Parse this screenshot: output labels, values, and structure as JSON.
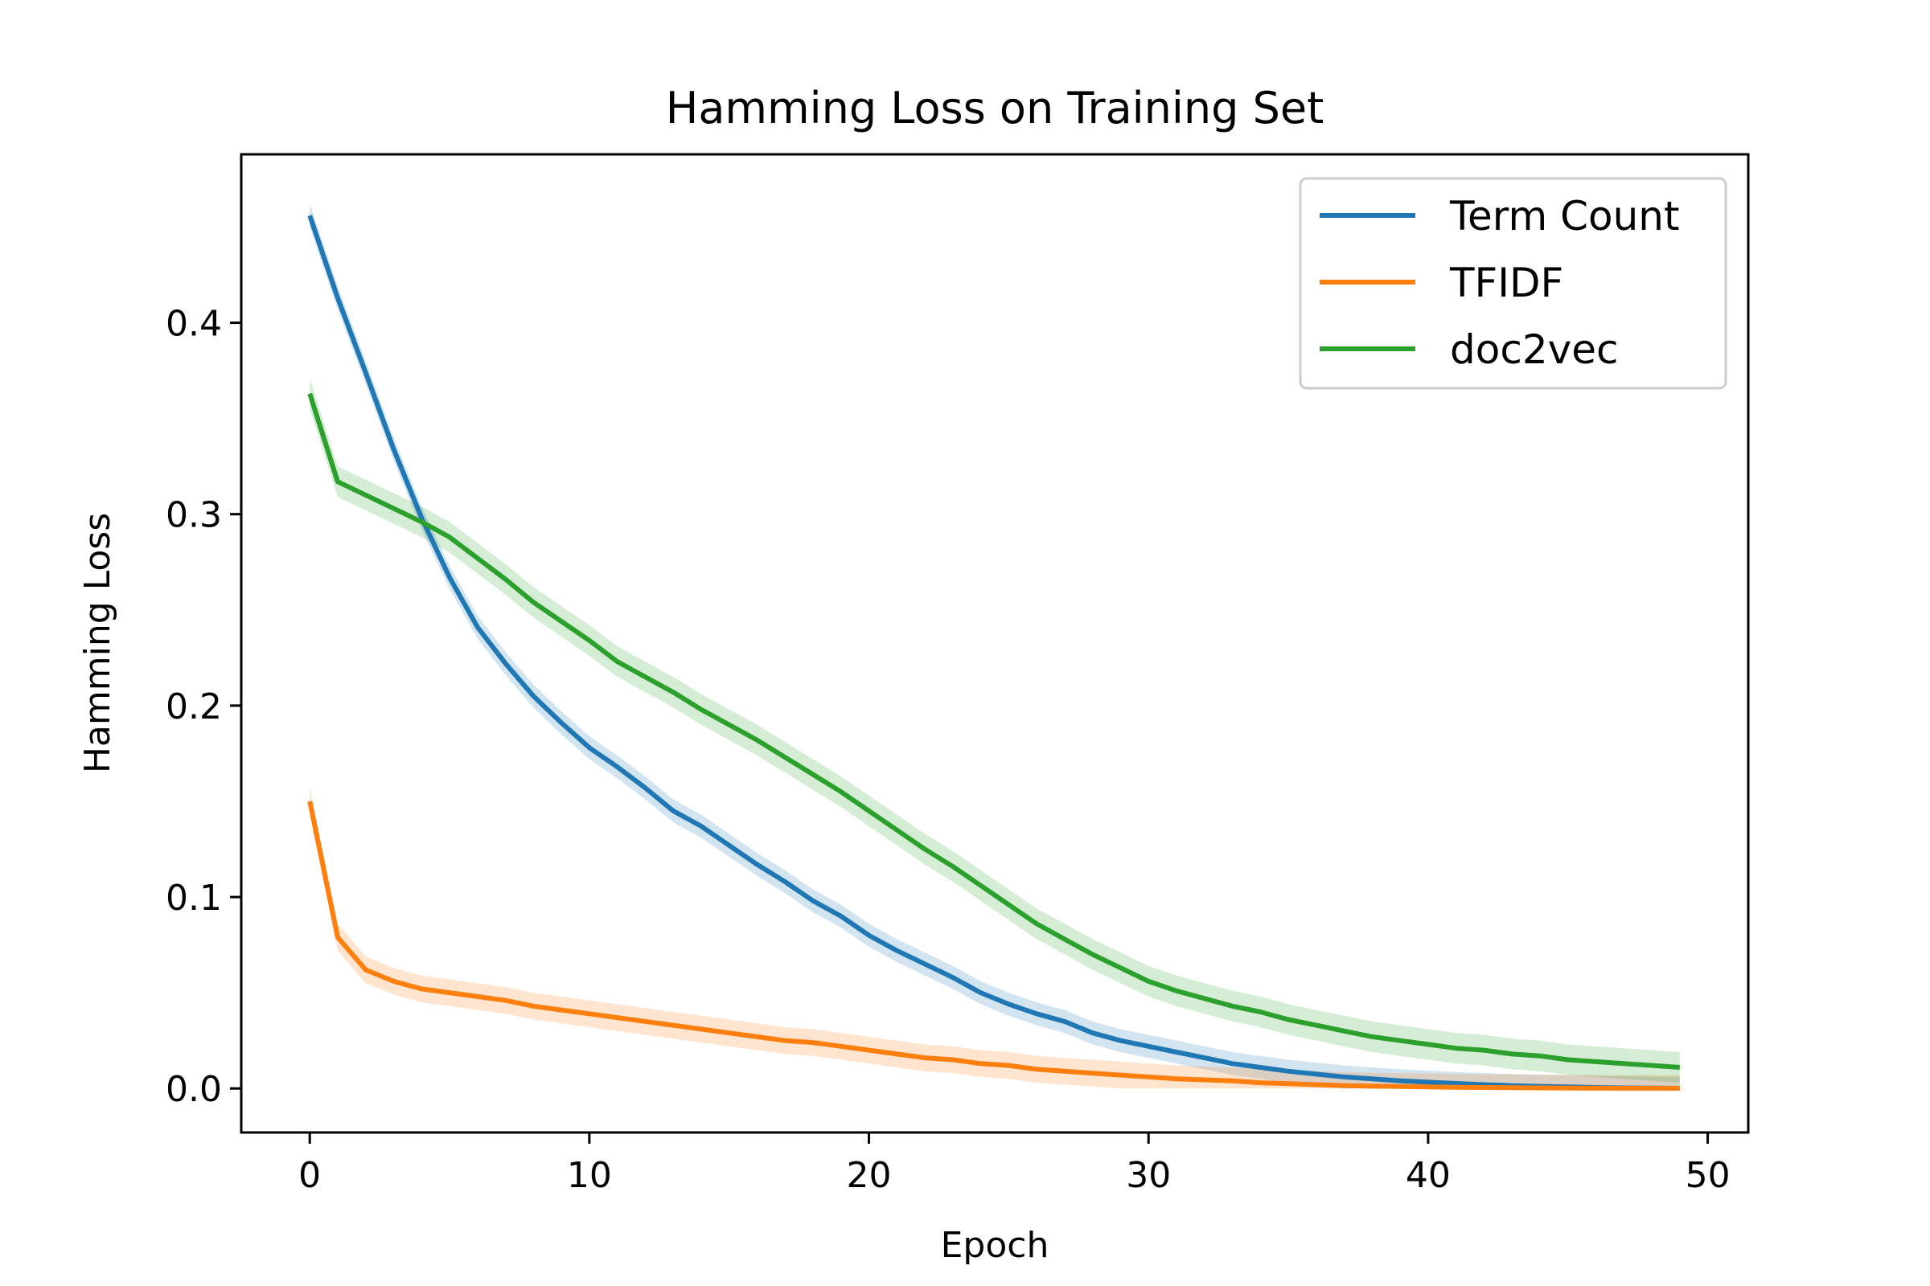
{
  "chart_data": {
    "type": "line",
    "title": "Hamming Loss on Training Set",
    "xlabel": "Epoch",
    "ylabel": "Hamming Loss",
    "xlim": [
      -2.45,
      51.45
    ],
    "ylim": [
      -0.023,
      0.488
    ],
    "xticks": [
      0,
      10,
      20,
      30,
      40,
      50
    ],
    "xtick_labels": [
      "0",
      "10",
      "20",
      "30",
      "40",
      "50"
    ],
    "yticks": [
      0.0,
      0.1,
      0.2,
      0.3,
      0.4
    ],
    "ytick_labels": [
      "0.0",
      "0.1",
      "0.2",
      "0.3",
      "0.4"
    ],
    "grid": false,
    "legend_position": "top-right",
    "x": [
      0,
      1,
      2,
      3,
      4,
      5,
      6,
      7,
      8,
      9,
      10,
      11,
      12,
      13,
      14,
      15,
      16,
      17,
      18,
      19,
      20,
      21,
      22,
      23,
      24,
      25,
      26,
      27,
      28,
      29,
      30,
      31,
      32,
      33,
      34,
      35,
      36,
      37,
      38,
      39,
      40,
      41,
      42,
      43,
      44,
      45,
      46,
      47,
      48,
      49
    ],
    "series": [
      {
        "name": "Term Count",
        "color": "#1f77b4",
        "band": 0.006,
        "values": [
          0.456,
          0.413,
          0.374,
          0.334,
          0.298,
          0.267,
          0.241,
          0.222,
          0.205,
          0.191,
          0.178,
          0.168,
          0.157,
          0.145,
          0.137,
          0.127,
          0.117,
          0.108,
          0.098,
          0.09,
          0.08,
          0.072,
          0.065,
          0.058,
          0.05,
          0.044,
          0.039,
          0.035,
          0.029,
          0.025,
          0.022,
          0.019,
          0.016,
          0.013,
          0.011,
          0.009,
          0.0075,
          0.006,
          0.005,
          0.004,
          0.0033,
          0.0026,
          0.002,
          0.0015,
          0.0011,
          0.0008,
          0.0005,
          0.0003,
          0.0002,
          0.0001
        ]
      },
      {
        "name": "TFIDF",
        "color": "#ff7f0e",
        "band": 0.007,
        "values": [
          0.15,
          0.079,
          0.062,
          0.056,
          0.052,
          0.05,
          0.048,
          0.046,
          0.043,
          0.041,
          0.039,
          0.037,
          0.035,
          0.033,
          0.031,
          0.029,
          0.027,
          0.025,
          0.024,
          0.022,
          0.02,
          0.018,
          0.016,
          0.015,
          0.013,
          0.012,
          0.01,
          0.009,
          0.008,
          0.007,
          0.006,
          0.005,
          0.0045,
          0.004,
          0.003,
          0.0025,
          0.002,
          0.0015,
          0.0012,
          0.001,
          0.0008,
          0.0006,
          0.0005,
          0.0004,
          0.0003,
          0.0002,
          0.00015,
          0.0001,
          0.0001,
          0.0001
        ]
      },
      {
        "name": "doc2vec",
        "color": "#2ca02c",
        "band": 0.008,
        "values": [
          0.363,
          0.317,
          0.31,
          0.303,
          0.296,
          0.288,
          0.277,
          0.266,
          0.254,
          0.244,
          0.234,
          0.223,
          0.215,
          0.207,
          0.198,
          0.19,
          0.182,
          0.173,
          0.164,
          0.155,
          0.145,
          0.135,
          0.125,
          0.116,
          0.106,
          0.096,
          0.086,
          0.078,
          0.07,
          0.063,
          0.056,
          0.051,
          0.047,
          0.043,
          0.04,
          0.036,
          0.033,
          0.03,
          0.027,
          0.025,
          0.023,
          0.021,
          0.02,
          0.018,
          0.017,
          0.015,
          0.014,
          0.013,
          0.012,
          0.011
        ]
      }
    ]
  }
}
